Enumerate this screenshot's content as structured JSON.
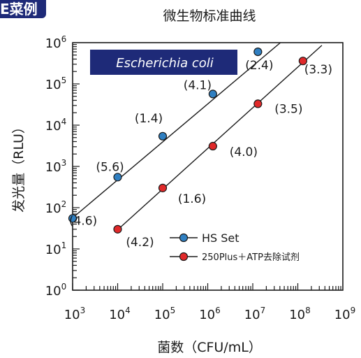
{
  "badge": "E菜例",
  "chart_data": {
    "type": "scatter",
    "title": "微生物标准曲线",
    "xlabel": "菌数（CFU/mL）",
    "ylabel": "发光量（RLU）",
    "xscale": "log",
    "yscale": "log",
    "xlim": [
      1000,
      1000000000
    ],
    "ylim": [
      1,
      1000000
    ],
    "x_tick_labels": [
      {
        "base": "10",
        "exp": "3"
      },
      {
        "base": "10",
        "exp": "4"
      },
      {
        "base": "10",
        "exp": "5"
      },
      {
        "base": "10",
        "exp": "6"
      },
      {
        "base": "10",
        "exp": "7"
      },
      {
        "base": "10",
        "exp": "8"
      },
      {
        "base": "10",
        "exp": "9"
      }
    ],
    "y_tick_labels": [
      {
        "base": "10",
        "exp": "0"
      },
      {
        "base": "10",
        "exp": "1"
      },
      {
        "base": "10",
        "exp": "2"
      },
      {
        "base": "10",
        "exp": "3"
      },
      {
        "base": "10",
        "exp": "4"
      },
      {
        "base": "10",
        "exp": "5"
      },
      {
        "base": "10",
        "exp": "6"
      }
    ],
    "annotation_box": "Escherichia coli",
    "legend_position": "bottom-right",
    "series": [
      {
        "name": "HS Set",
        "color": "#2f7fc1",
        "points": [
          {
            "x": 1000,
            "y": 55,
            "label": "(4.6)"
          },
          {
            "x": 10000,
            "y": 550,
            "label": "(5.6)"
          },
          {
            "x": 100000,
            "y": 5400,
            "label": "(1.4)"
          },
          {
            "x": 1300000,
            "y": 57000,
            "label": "(4.1)"
          },
          {
            "x": 13000000,
            "y": 600000,
            "label": "(2.4)"
          }
        ]
      },
      {
        "name": "250Plus＋ATP去除试剂",
        "color": "#e0292a",
        "points": [
          {
            "x": 10000,
            "y": 30,
            "label": "(4.2)"
          },
          {
            "x": 100000,
            "y": 300,
            "label": "(1.6)"
          },
          {
            "x": 1300000,
            "y": 3100,
            "label": "(4.0)"
          },
          {
            "x": 13000000,
            "y": 33000,
            "label": "(3.5)"
          },
          {
            "x": 130000000,
            "y": 360000,
            "label": "(3.3)"
          }
        ]
      }
    ]
  }
}
